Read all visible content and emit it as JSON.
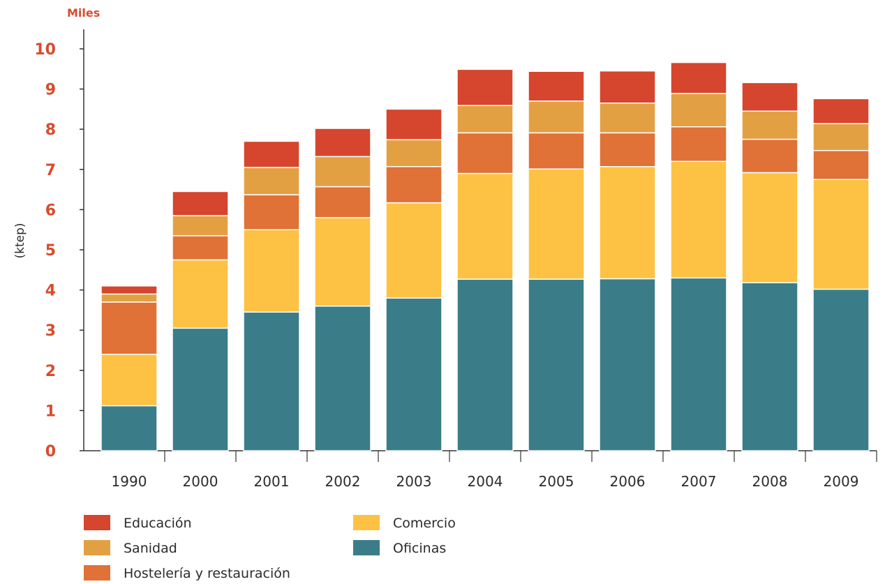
{
  "chart_data": {
    "type": "bar",
    "stacked": true,
    "unit_label": "Miles",
    "ylabel": "(ktep)",
    "xlabel": "",
    "title": "",
    "ylim": [
      0,
      10.5
    ],
    "yticks": [
      "0",
      "1",
      "2",
      "3",
      "4",
      "5",
      "6",
      "7",
      "8",
      "9",
      "10"
    ],
    "categories": [
      "1990",
      "2000",
      "2001",
      "2002",
      "2003",
      "2004",
      "2005",
      "2006",
      "2007",
      "2008",
      "2009"
    ],
    "series": [
      {
        "name": "Oficinas",
        "color": "#3a7d89",
        "values": [
          1.12,
          3.05,
          3.45,
          3.6,
          3.8,
          4.27,
          4.27,
          4.28,
          4.3,
          4.18,
          4.02
        ]
      },
      {
        "name": "Comercio",
        "color": "#fdc244",
        "values": [
          1.28,
          1.7,
          2.05,
          2.2,
          2.37,
          2.63,
          2.74,
          2.79,
          2.9,
          2.74,
          2.73
        ]
      },
      {
        "name": "Hostelería y restauración",
        "color": "#e07137",
        "values": [
          1.3,
          0.6,
          0.87,
          0.77,
          0.9,
          1.01,
          0.9,
          0.84,
          0.86,
          0.83,
          0.72
        ]
      },
      {
        "name": "Sanidad",
        "color": "#e3a042",
        "values": [
          0.2,
          0.5,
          0.68,
          0.75,
          0.67,
          0.68,
          0.79,
          0.74,
          0.83,
          0.7,
          0.67
        ]
      },
      {
        "name": "Educación",
        "color": "#d6452d",
        "values": [
          0.2,
          0.6,
          0.65,
          0.7,
          0.76,
          0.9,
          0.74,
          0.8,
          0.77,
          0.71,
          0.62
        ]
      }
    ],
    "legend": {
      "position": "bottom-left",
      "order": [
        "Educación",
        "Sanidad",
        "Hostelería y restauración",
        "Comercio",
        "Oficinas"
      ]
    },
    "grid": false,
    "colors": {
      "tick_label": "#d94b2e",
      "text": "#2b2b2b",
      "axis": "#333333"
    }
  }
}
